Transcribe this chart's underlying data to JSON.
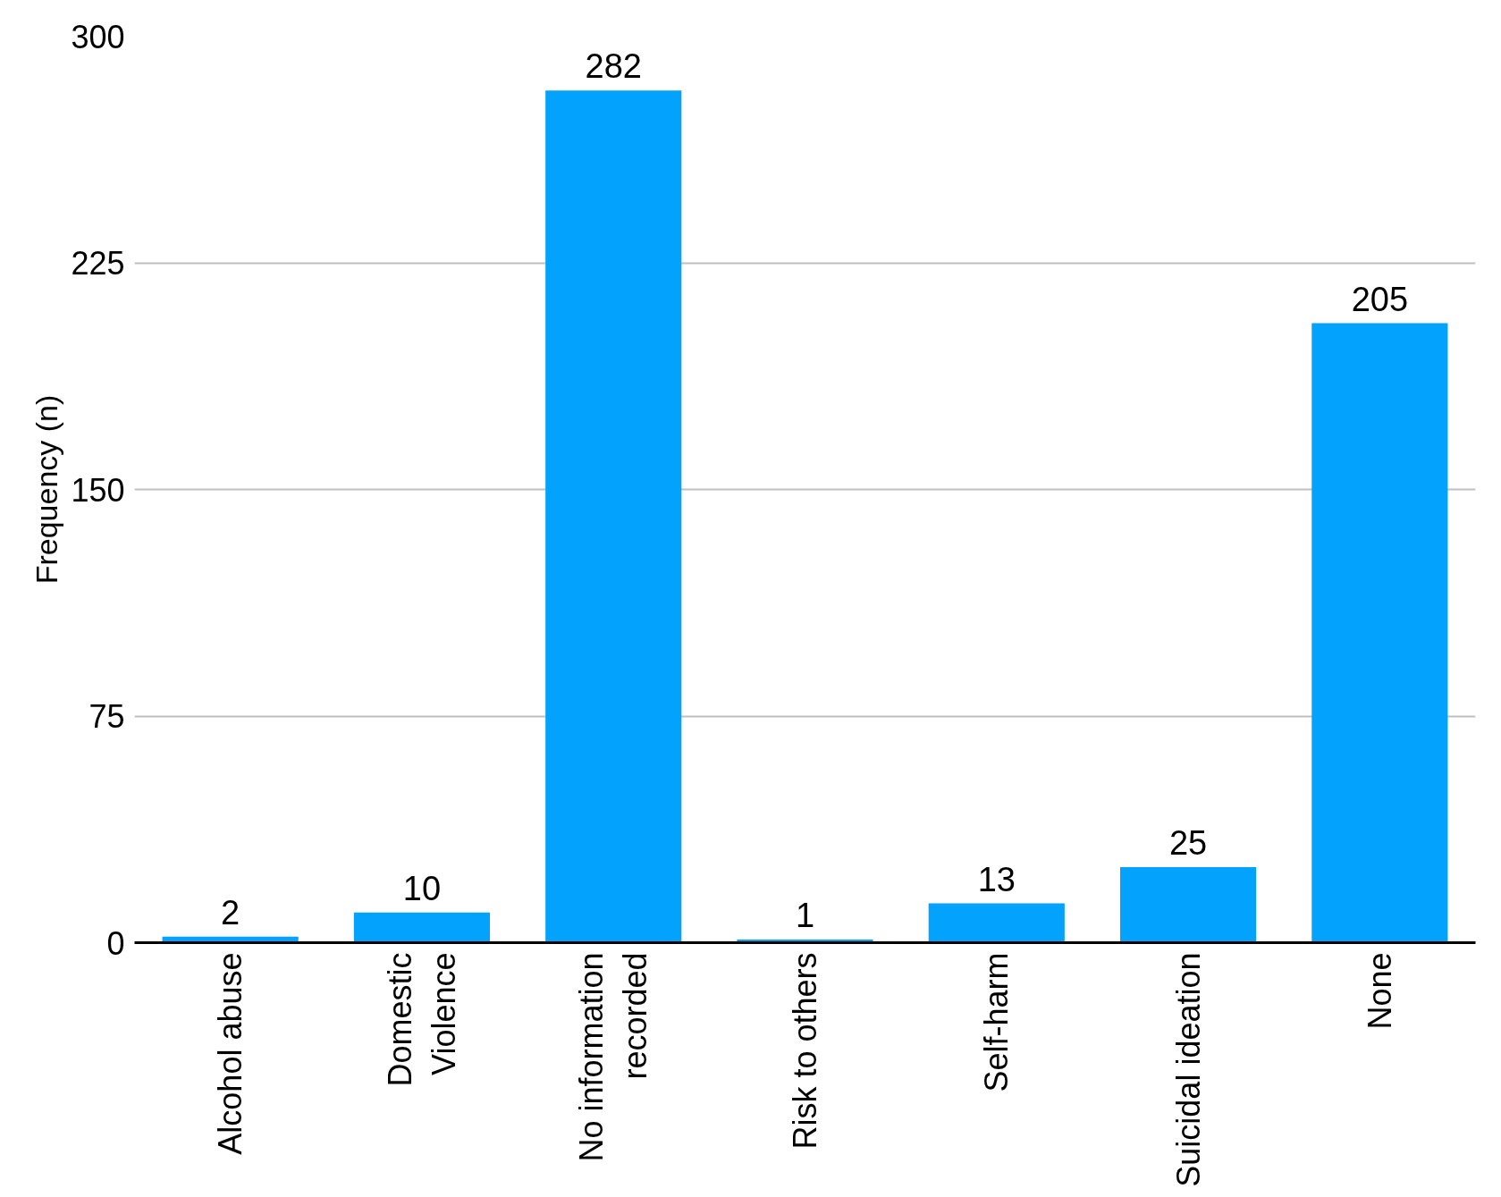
{
  "chart_data": {
    "type": "bar",
    "ylabel": "Frequency (n)",
    "categories": [
      "Alcohol abuse",
      "Domestic\nViolence",
      "No information\nrecorded",
      "Risk to others",
      "Self-harm",
      "Suicidal ideation",
      "None"
    ],
    "values": [
      2,
      10,
      282,
      1,
      13,
      25,
      205
    ],
    "color": "#02a2fd",
    "ylim": [
      0,
      300
    ],
    "yticks": [
      0,
      75,
      150,
      225,
      300
    ],
    "grid": "y",
    "data_labels": true
  }
}
